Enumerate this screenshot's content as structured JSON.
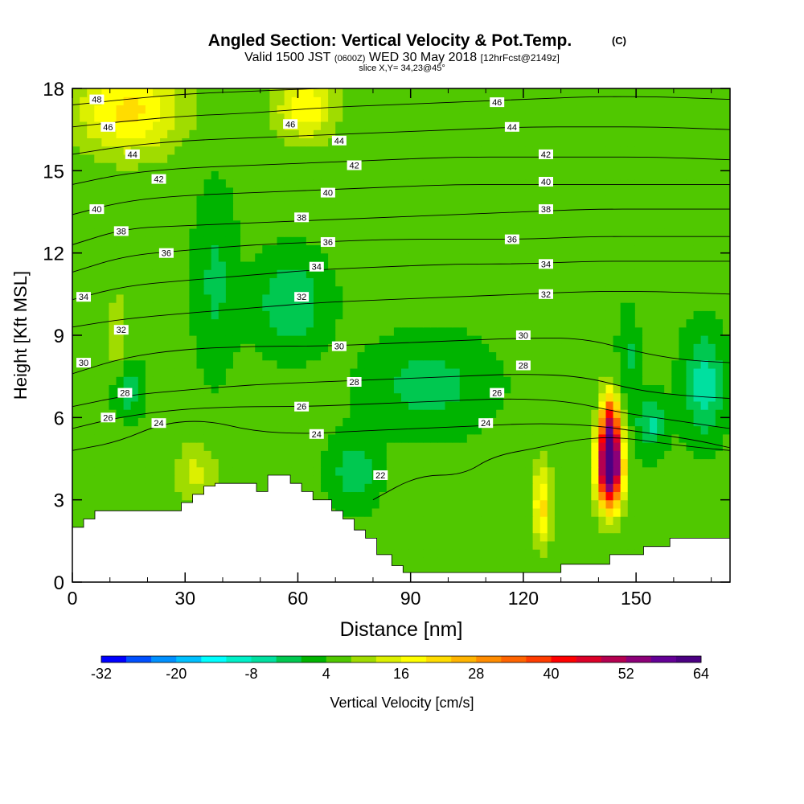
{
  "chart_data": {
    "type": "heatmap",
    "title": "Angled Section: Vertical Velocity & Pot.Temp.",
    "title_unit": "(C)",
    "subtitle_valid": "Valid 1500 JST",
    "subtitle_utc": "(0600Z)",
    "subtitle_date": "WED 30 May 2018",
    "subtitle_fcst": "[12hrFcst@2149z]",
    "slice_label": "slice X,Y= 34,23@45°",
    "xlabel": "Distance [nm]",
    "ylabel": "Height [Kft MSL]",
    "xlim": [
      0,
      175
    ],
    "ylim": [
      0,
      18
    ],
    "x_ticks": [
      0,
      30,
      60,
      90,
      120,
      150
    ],
    "y_ticks": [
      0,
      3,
      6,
      9,
      12,
      15,
      18
    ],
    "colorbar": {
      "label": "Vertical Velocity [cm/s]",
      "min": -32,
      "max": 64,
      "step": 4,
      "tick_labels": [
        -32,
        -20,
        -8,
        4,
        16,
        28,
        40,
        52,
        64
      ],
      "colors": [
        "#0000ff",
        "#0050ff",
        "#0090ff",
        "#00c0ff",
        "#00ffff",
        "#00f0c8",
        "#00e0a0",
        "#00c850",
        "#00b400",
        "#50c800",
        "#a0dc00",
        "#dcf000",
        "#ffff00",
        "#ffdc00",
        "#ffb400",
        "#ff8c00",
        "#ff6400",
        "#ff3c00",
        "#ff0000",
        "#dc0028",
        "#b40050",
        "#8c0078",
        "#640096",
        "#4b0082"
      ]
    },
    "terrain_top_kft": [
      [
        0,
        2.0
      ],
      [
        3,
        2.0
      ],
      [
        3,
        2.3
      ],
      [
        6,
        2.3
      ],
      [
        6,
        2.6
      ],
      [
        14,
        2.6
      ],
      [
        14,
        2.6
      ],
      [
        29,
        2.6
      ],
      [
        29,
        2.9
      ],
      [
        32,
        2.9
      ],
      [
        32,
        3.2
      ],
      [
        35,
        3.2
      ],
      [
        35,
        3.5
      ],
      [
        38,
        3.5
      ],
      [
        38,
        3.6
      ],
      [
        49,
        3.6
      ],
      [
        49,
        3.3
      ],
      [
        52,
        3.3
      ],
      [
        52,
        3.9
      ],
      [
        58,
        3.9
      ],
      [
        58,
        3.6
      ],
      [
        61,
        3.6
      ],
      [
        61,
        3.3
      ],
      [
        64,
        3.3
      ],
      [
        64,
        3.0
      ],
      [
        69,
        3.0
      ],
      [
        69,
        2.6
      ],
      [
        72,
        2.6
      ],
      [
        72,
        2.3
      ],
      [
        75,
        2.3
      ],
      [
        75,
        1.9
      ],
      [
        78,
        1.9
      ],
      [
        78,
        1.6
      ],
      [
        81,
        1.6
      ],
      [
        81,
        1.0
      ],
      [
        85,
        1.0
      ],
      [
        85,
        0.6
      ],
      [
        88,
        0.6
      ],
      [
        88,
        0.35
      ],
      [
        130,
        0.35
      ],
      [
        130,
        0.65
      ],
      [
        143,
        0.65
      ],
      [
        143,
        1.0
      ],
      [
        152,
        1.0
      ],
      [
        152,
        1.3
      ],
      [
        159,
        1.3
      ],
      [
        159,
        1.6
      ],
      [
        175,
        1.6
      ]
    ],
    "velocity_features": [
      {
        "x": 143,
        "y": 4.2,
        "sx": 3.2,
        "sy": 1.4,
        "w": 64
      },
      {
        "x": 143,
        "y": 5.8,
        "sx": 2.4,
        "sy": 1.2,
        "w": 30
      },
      {
        "x": 125,
        "y": 2.8,
        "sx": 2.5,
        "sy": 1.5,
        "w": 16
      },
      {
        "x": 15,
        "y": 17.2,
        "sx": 14,
        "sy": 1.6,
        "w": 16
      },
      {
        "x": 62,
        "y": 17.3,
        "sx": 8,
        "sy": 1.2,
        "w": 14
      },
      {
        "x": 33,
        "y": 4.0,
        "sx": 6,
        "sy": 1.1,
        "w": 8
      },
      {
        "x": 12,
        "y": 8.5,
        "sx": 3,
        "sy": 2.5,
        "w": 6
      },
      {
        "x": 58,
        "y": 10.2,
        "sx": 9,
        "sy": 1.6,
        "w": -9
      },
      {
        "x": 38,
        "y": 11.0,
        "sx": 5,
        "sy": 3,
        "w": -6
      },
      {
        "x": 95,
        "y": 7.2,
        "sx": 15,
        "sy": 1.6,
        "w": -7
      },
      {
        "x": 75,
        "y": 4.0,
        "sx": 6,
        "sy": 1.2,
        "w": -8
      },
      {
        "x": 168,
        "y": 7.2,
        "sx": 5,
        "sy": 1.8,
        "w": -12
      },
      {
        "x": 154,
        "y": 5.8,
        "sx": 4,
        "sy": 1.0,
        "w": -10
      },
      {
        "x": 148,
        "y": 8.2,
        "sx": 2.5,
        "sy": 1.5,
        "w": -6
      },
      {
        "x": 14,
        "y": 7.0,
        "sx": 4,
        "sy": 1.0,
        "w": -10
      }
    ],
    "theta_levels": [
      22,
      24,
      26,
      28,
      30,
      32,
      34,
      36,
      38,
      40,
      42,
      44,
      46,
      48
    ],
    "theta_lines": [
      {
        "value": 22,
        "points": [
          [
            80,
            3.0
          ],
          [
            92,
            3.9
          ],
          [
            104,
            3.9
          ],
          [
            112,
            4.6
          ],
          [
            124,
            4.9
          ],
          [
            134,
            5.2
          ],
          [
            145,
            5.3
          ],
          [
            160,
            5.0
          ],
          [
            175,
            4.8
          ]
        ]
      },
      {
        "value": 24,
        "points": [
          [
            0,
            4.8
          ],
          [
            12,
            5.1
          ],
          [
            24,
            5.8
          ],
          [
            36,
            5.9
          ],
          [
            48,
            5.5
          ],
          [
            62,
            5.4
          ],
          [
            75,
            5.5
          ],
          [
            92,
            5.6
          ],
          [
            108,
            5.7
          ],
          [
            125,
            5.8
          ],
          [
            140,
            5.7
          ],
          [
            150,
            5.5
          ],
          [
            165,
            5.2
          ],
          [
            175,
            4.9
          ]
        ]
      },
      {
        "value": 26,
        "points": [
          [
            0,
            5.6
          ],
          [
            12,
            6.0
          ],
          [
            28,
            6.3
          ],
          [
            44,
            6.4
          ],
          [
            62,
            6.4
          ],
          [
            80,
            6.5
          ],
          [
            98,
            6.6
          ],
          [
            116,
            6.7
          ],
          [
            132,
            6.6
          ],
          [
            145,
            6.2
          ],
          [
            160,
            5.9
          ],
          [
            175,
            5.6
          ]
        ]
      },
      {
        "value": 28,
        "points": [
          [
            0,
            6.4
          ],
          [
            14,
            6.8
          ],
          [
            30,
            7.0
          ],
          [
            48,
            7.2
          ],
          [
            66,
            7.3
          ],
          [
            84,
            7.4
          ],
          [
            102,
            7.5
          ],
          [
            120,
            7.6
          ],
          [
            136,
            7.5
          ],
          [
            150,
            7.0
          ],
          [
            162,
            6.8
          ],
          [
            175,
            6.7
          ]
        ]
      },
      {
        "value": 30,
        "points": [
          [
            0,
            7.6
          ],
          [
            14,
            8.2
          ],
          [
            30,
            8.5
          ],
          [
            48,
            8.6
          ],
          [
            66,
            8.6
          ],
          [
            84,
            8.7
          ],
          [
            102,
            8.8
          ],
          [
            120,
            8.9
          ],
          [
            136,
            8.9
          ],
          [
            150,
            8.4
          ],
          [
            162,
            8.1
          ],
          [
            175,
            8.0
          ]
        ]
      },
      {
        "value": 32,
        "points": [
          [
            0,
            9.3
          ],
          [
            14,
            9.6
          ],
          [
            30,
            9.8
          ],
          [
            48,
            10.0
          ],
          [
            66,
            10.2
          ],
          [
            84,
            10.3
          ],
          [
            102,
            10.4
          ],
          [
            120,
            10.5
          ],
          [
            138,
            10.6
          ],
          [
            155,
            10.6
          ],
          [
            175,
            10.5
          ]
        ]
      },
      {
        "value": 34,
        "points": [
          [
            0,
            10.3
          ],
          [
            14,
            10.8
          ],
          [
            30,
            11.0
          ],
          [
            48,
            11.2
          ],
          [
            66,
            11.4
          ],
          [
            84,
            11.5
          ],
          [
            102,
            11.6
          ],
          [
            120,
            11.6
          ],
          [
            138,
            11.7
          ],
          [
            155,
            11.7
          ],
          [
            175,
            11.7
          ]
        ]
      },
      {
        "value": 36,
        "points": [
          [
            0,
            11.3
          ],
          [
            14,
            11.9
          ],
          [
            30,
            12.1
          ],
          [
            48,
            12.3
          ],
          [
            66,
            12.4
          ],
          [
            84,
            12.5
          ],
          [
            102,
            12.5
          ],
          [
            120,
            12.5
          ],
          [
            138,
            12.6
          ],
          [
            155,
            12.6
          ],
          [
            175,
            12.6
          ]
        ]
      },
      {
        "value": 38,
        "points": [
          [
            0,
            12.3
          ],
          [
            14,
            12.9
          ],
          [
            30,
            13.0
          ],
          [
            48,
            13.1
          ],
          [
            66,
            13.2
          ],
          [
            84,
            13.3
          ],
          [
            102,
            13.4
          ],
          [
            120,
            13.5
          ],
          [
            138,
            13.6
          ],
          [
            155,
            13.6
          ],
          [
            175,
            13.6
          ]
        ]
      },
      {
        "value": 40,
        "points": [
          [
            0,
            13.4
          ],
          [
            14,
            13.9
          ],
          [
            30,
            14.1
          ],
          [
            48,
            14.2
          ],
          [
            66,
            14.3
          ],
          [
            84,
            14.4
          ],
          [
            102,
            14.5
          ],
          [
            120,
            14.5
          ],
          [
            138,
            14.5
          ],
          [
            155,
            14.5
          ],
          [
            175,
            14.5
          ]
        ]
      },
      {
        "value": 42,
        "points": [
          [
            0,
            14.5
          ],
          [
            14,
            14.9
          ],
          [
            30,
            15.1
          ],
          [
            48,
            15.2
          ],
          [
            66,
            15.3
          ],
          [
            84,
            15.4
          ],
          [
            102,
            15.5
          ],
          [
            120,
            15.5
          ],
          [
            138,
            15.5
          ],
          [
            155,
            15.5
          ],
          [
            175,
            15.4
          ]
        ]
      },
      {
        "value": 44,
        "points": [
          [
            0,
            15.6
          ],
          [
            14,
            15.9
          ],
          [
            30,
            16.1
          ],
          [
            48,
            16.2
          ],
          [
            66,
            16.3
          ],
          [
            84,
            16.4
          ],
          [
            102,
            16.5
          ],
          [
            120,
            16.6
          ],
          [
            138,
            16.6
          ],
          [
            155,
            16.6
          ],
          [
            175,
            16.5
          ]
        ]
      },
      {
        "value": 46,
        "points": [
          [
            0,
            16.6
          ],
          [
            14,
            16.8
          ],
          [
            30,
            17.0
          ],
          [
            48,
            17.1
          ],
          [
            66,
            17.3
          ],
          [
            84,
            17.4
          ],
          [
            102,
            17.5
          ],
          [
            120,
            17.6
          ],
          [
            138,
            17.7
          ],
          [
            155,
            17.7
          ],
          [
            175,
            17.6
          ]
        ]
      },
      {
        "value": 48,
        "points": [
          [
            0,
            17.4
          ],
          [
            14,
            17.6
          ],
          [
            30,
            17.8
          ],
          [
            48,
            17.9
          ],
          [
            66,
            18.0
          ]
        ]
      }
    ],
    "theta_labels": [
      {
        "text": "48",
        "x": 6.5,
        "y": 17.6
      },
      {
        "text": "46",
        "x": 9.5,
        "y": 16.6
      },
      {
        "text": "44",
        "x": 16,
        "y": 15.6
      },
      {
        "text": "42",
        "x": 23,
        "y": 14.7
      },
      {
        "text": "40",
        "x": 6.5,
        "y": 13.6
      },
      {
        "text": "38",
        "x": 13,
        "y": 12.8
      },
      {
        "text": "36",
        "x": 25,
        "y": 12.0
      },
      {
        "text": "34",
        "x": 3,
        "y": 10.4
      },
      {
        "text": "32",
        "x": 13,
        "y": 9.2
      },
      {
        "text": "30",
        "x": 3,
        "y": 8.0
      },
      {
        "text": "28",
        "x": 14,
        "y": 6.9
      },
      {
        "text": "26",
        "x": 9.5,
        "y": 6.0
      },
      {
        "text": "24",
        "x": 23,
        "y": 5.8
      },
      {
        "text": "46",
        "x": 58,
        "y": 16.7
      },
      {
        "text": "44",
        "x": 71,
        "y": 16.1
      },
      {
        "text": "42",
        "x": 75,
        "y": 15.2
      },
      {
        "text": "40",
        "x": 68,
        "y": 14.2
      },
      {
        "text": "38",
        "x": 61,
        "y": 13.3
      },
      {
        "text": "36",
        "x": 68,
        "y": 12.4
      },
      {
        "text": "34",
        "x": 65,
        "y": 11.5
      },
      {
        "text": "32",
        "x": 61,
        "y": 10.4
      },
      {
        "text": "30",
        "x": 71,
        "y": 8.6
      },
      {
        "text": "28",
        "x": 75,
        "y": 7.3
      },
      {
        "text": "26",
        "x": 61,
        "y": 6.4
      },
      {
        "text": "24",
        "x": 65,
        "y": 5.4
      },
      {
        "text": "22",
        "x": 82,
        "y": 3.9
      },
      {
        "text": "46",
        "x": 113,
        "y": 17.5
      },
      {
        "text": "44",
        "x": 117,
        "y": 16.6
      },
      {
        "text": "42",
        "x": 126,
        "y": 15.6
      },
      {
        "text": "40",
        "x": 126,
        "y": 14.6
      },
      {
        "text": "38",
        "x": 126,
        "y": 13.6
      },
      {
        "text": "36",
        "x": 117,
        "y": 12.5
      },
      {
        "text": "34",
        "x": 126,
        "y": 11.6
      },
      {
        "text": "32",
        "x": 126,
        "y": 10.5
      },
      {
        "text": "30",
        "x": 120,
        "y": 9.0
      },
      {
        "text": "28",
        "x": 120,
        "y": 7.9
      },
      {
        "text": "26",
        "x": 113,
        "y": 6.9
      },
      {
        "text": "24",
        "x": 110,
        "y": 5.8
      }
    ]
  }
}
